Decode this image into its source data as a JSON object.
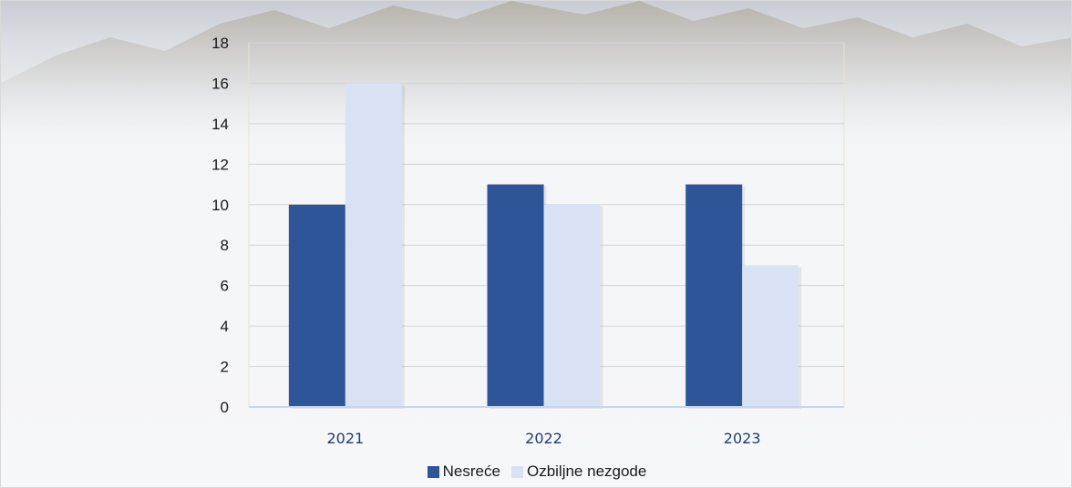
{
  "colors": {
    "series1": "#2e5597",
    "series2": "#d9e2f4",
    "grid": "#d4d4d4",
    "plot_border": "#e8e4cf",
    "baseline": "#c7d6ee"
  },
  "chart_data": {
    "type": "bar",
    "categories": [
      "2021",
      "2022",
      "2023"
    ],
    "series": [
      {
        "name": "Nesreće",
        "values": [
          10,
          11,
          11
        ]
      },
      {
        "name": "Ozbiljne nezgode",
        "values": [
          16,
          10,
          7
        ]
      }
    ],
    "ylim": [
      0,
      18
    ],
    "yticks": [
      "0",
      "2",
      "4",
      "6",
      "8",
      "10",
      "12",
      "14",
      "16",
      "18"
    ],
    "grid": true,
    "legend_position": "bottom"
  }
}
